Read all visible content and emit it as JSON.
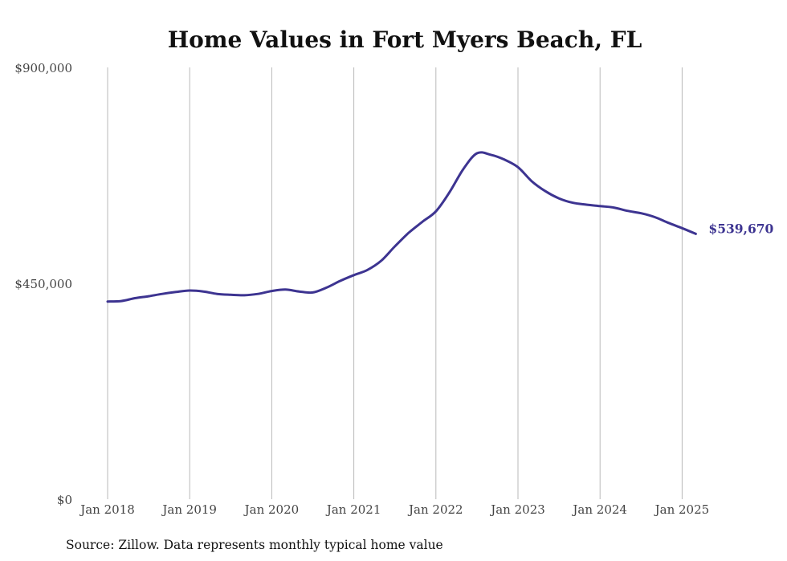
{
  "chart_data": {
    "type": "line",
    "title": "Home Values in Fort Myers Beach, FL",
    "xlabel": "",
    "ylabel": "",
    "ylim": [
      0,
      900000
    ],
    "y_ticks": [
      {
        "value": 900000,
        "label": "$900,000"
      },
      {
        "value": 450000,
        "label": "$450,000"
      },
      {
        "value": 0,
        "label": "$0"
      }
    ],
    "x_ticks": [
      {
        "value": "2018-01",
        "label": "Jan 2018"
      },
      {
        "value": "2019-01",
        "label": "Jan 2019"
      },
      {
        "value": "2020-01",
        "label": "Jan 2020"
      },
      {
        "value": "2021-01",
        "label": "Jan 2021"
      },
      {
        "value": "2022-01",
        "label": "Jan 2022"
      },
      {
        "value": "2023-01",
        "label": "Jan 2023"
      },
      {
        "value": "2024-01",
        "label": "Jan 2024"
      },
      {
        "value": "2025-01",
        "label": "Jan 2025"
      }
    ],
    "grid": {
      "vertical": true,
      "horizontal": false
    },
    "line_color": "#3d3491",
    "series": [
      {
        "x": [
          "2018-01",
          "2018-03",
          "2018-05",
          "2018-07",
          "2018-09",
          "2018-11",
          "2019-01",
          "2019-03",
          "2019-05",
          "2019-07",
          "2019-09",
          "2019-11",
          "2020-01",
          "2020-03",
          "2020-05",
          "2020-07",
          "2020-09",
          "2020-11",
          "2021-01",
          "2021-03",
          "2021-05",
          "2021-07",
          "2021-09",
          "2021-11",
          "2022-01",
          "2022-03",
          "2022-05",
          "2022-07",
          "2022-09",
          "2022-11",
          "2023-01",
          "2023-03",
          "2023-05",
          "2023-07",
          "2023-09",
          "2023-11",
          "2024-01",
          "2024-03",
          "2024-05",
          "2024-07",
          "2024-09",
          "2024-11",
          "2025-01",
          "2025-03"
        ],
        "values": [
          412000,
          413000,
          419000,
          423000,
          428000,
          432000,
          435000,
          433000,
          428000,
          426000,
          425000,
          428000,
          434000,
          437000,
          433000,
          431000,
          441000,
          455000,
          467000,
          478000,
          497000,
          527000,
          555000,
          578000,
          600000,
          640000,
          688000,
          721000,
          718000,
          708000,
          692000,
          663000,
          642000,
          627000,
          618000,
          614000,
          611000,
          608000,
          601000,
          596000,
          588000,
          576000,
          565000,
          553000
        ],
        "end_label": "$539,670"
      }
    ]
  },
  "footer": {
    "source": "Source: Zillow. Data represents monthly typical home value"
  }
}
